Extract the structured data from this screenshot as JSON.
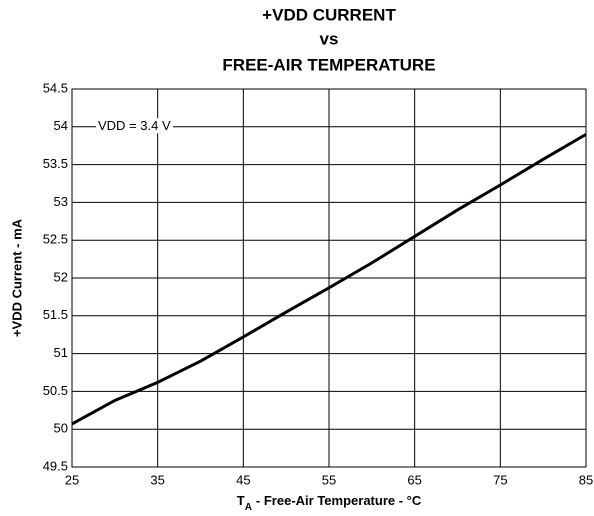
{
  "chart_data": {
    "type": "line",
    "title": [
      "+VDD CURRENT",
      "vs",
      "FREE-AIR TEMPERATURE"
    ],
    "x_label": {
      "symbol": "T",
      "subscript": "A",
      "text": "- Free-Air Temperature - °C"
    },
    "y_label": "+VDD Current - mA",
    "annotation": "VDD = 3.4 V",
    "x": [
      25,
      30,
      35,
      40,
      45,
      50,
      55,
      60,
      65,
      70,
      75,
      80,
      85
    ],
    "series": [
      {
        "name": "VDD = 3.4 V",
        "color": "#000000",
        "values": [
          50.07,
          50.38,
          50.62,
          50.9,
          51.22,
          51.55,
          51.87,
          52.2,
          52.55,
          52.9,
          53.23,
          53.57,
          53.9
        ]
      }
    ],
    "xlim": [
      25,
      85
    ],
    "xticks": [
      25,
      35,
      45,
      55,
      65,
      75,
      85
    ],
    "ylim": [
      49.5,
      54.5
    ],
    "yticks": [
      49.5,
      50,
      50.5,
      51,
      51.5,
      52,
      52.5,
      53,
      53.5,
      54,
      54.5
    ],
    "grid": true
  }
}
